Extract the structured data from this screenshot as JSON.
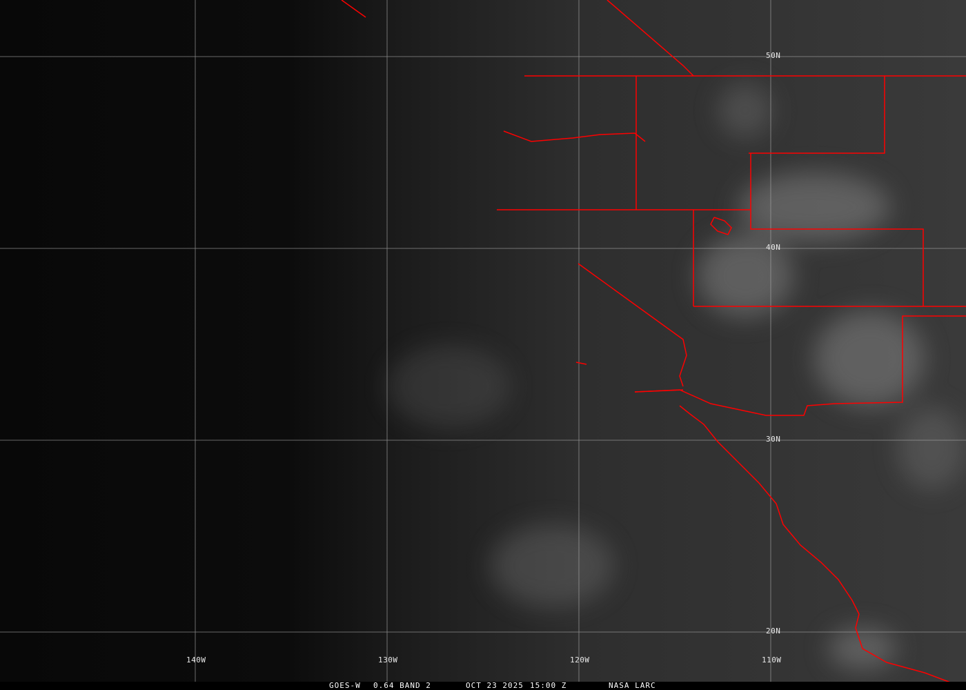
{
  "image": {
    "satellite": "GOES-W",
    "band": "0.64 BAND 2",
    "date": "OCT 23 2025",
    "time": "15:00 Z",
    "source": "NASA LARC"
  },
  "grid": {
    "latitudes": [
      "50N",
      "40N",
      "30N",
      "20N"
    ],
    "longitudes": [
      "140W",
      "130W",
      "120W",
      "110W"
    ]
  },
  "colors": {
    "boundaries": "#ff0000",
    "grid": "#b0b0b0",
    "background": "#080808"
  }
}
